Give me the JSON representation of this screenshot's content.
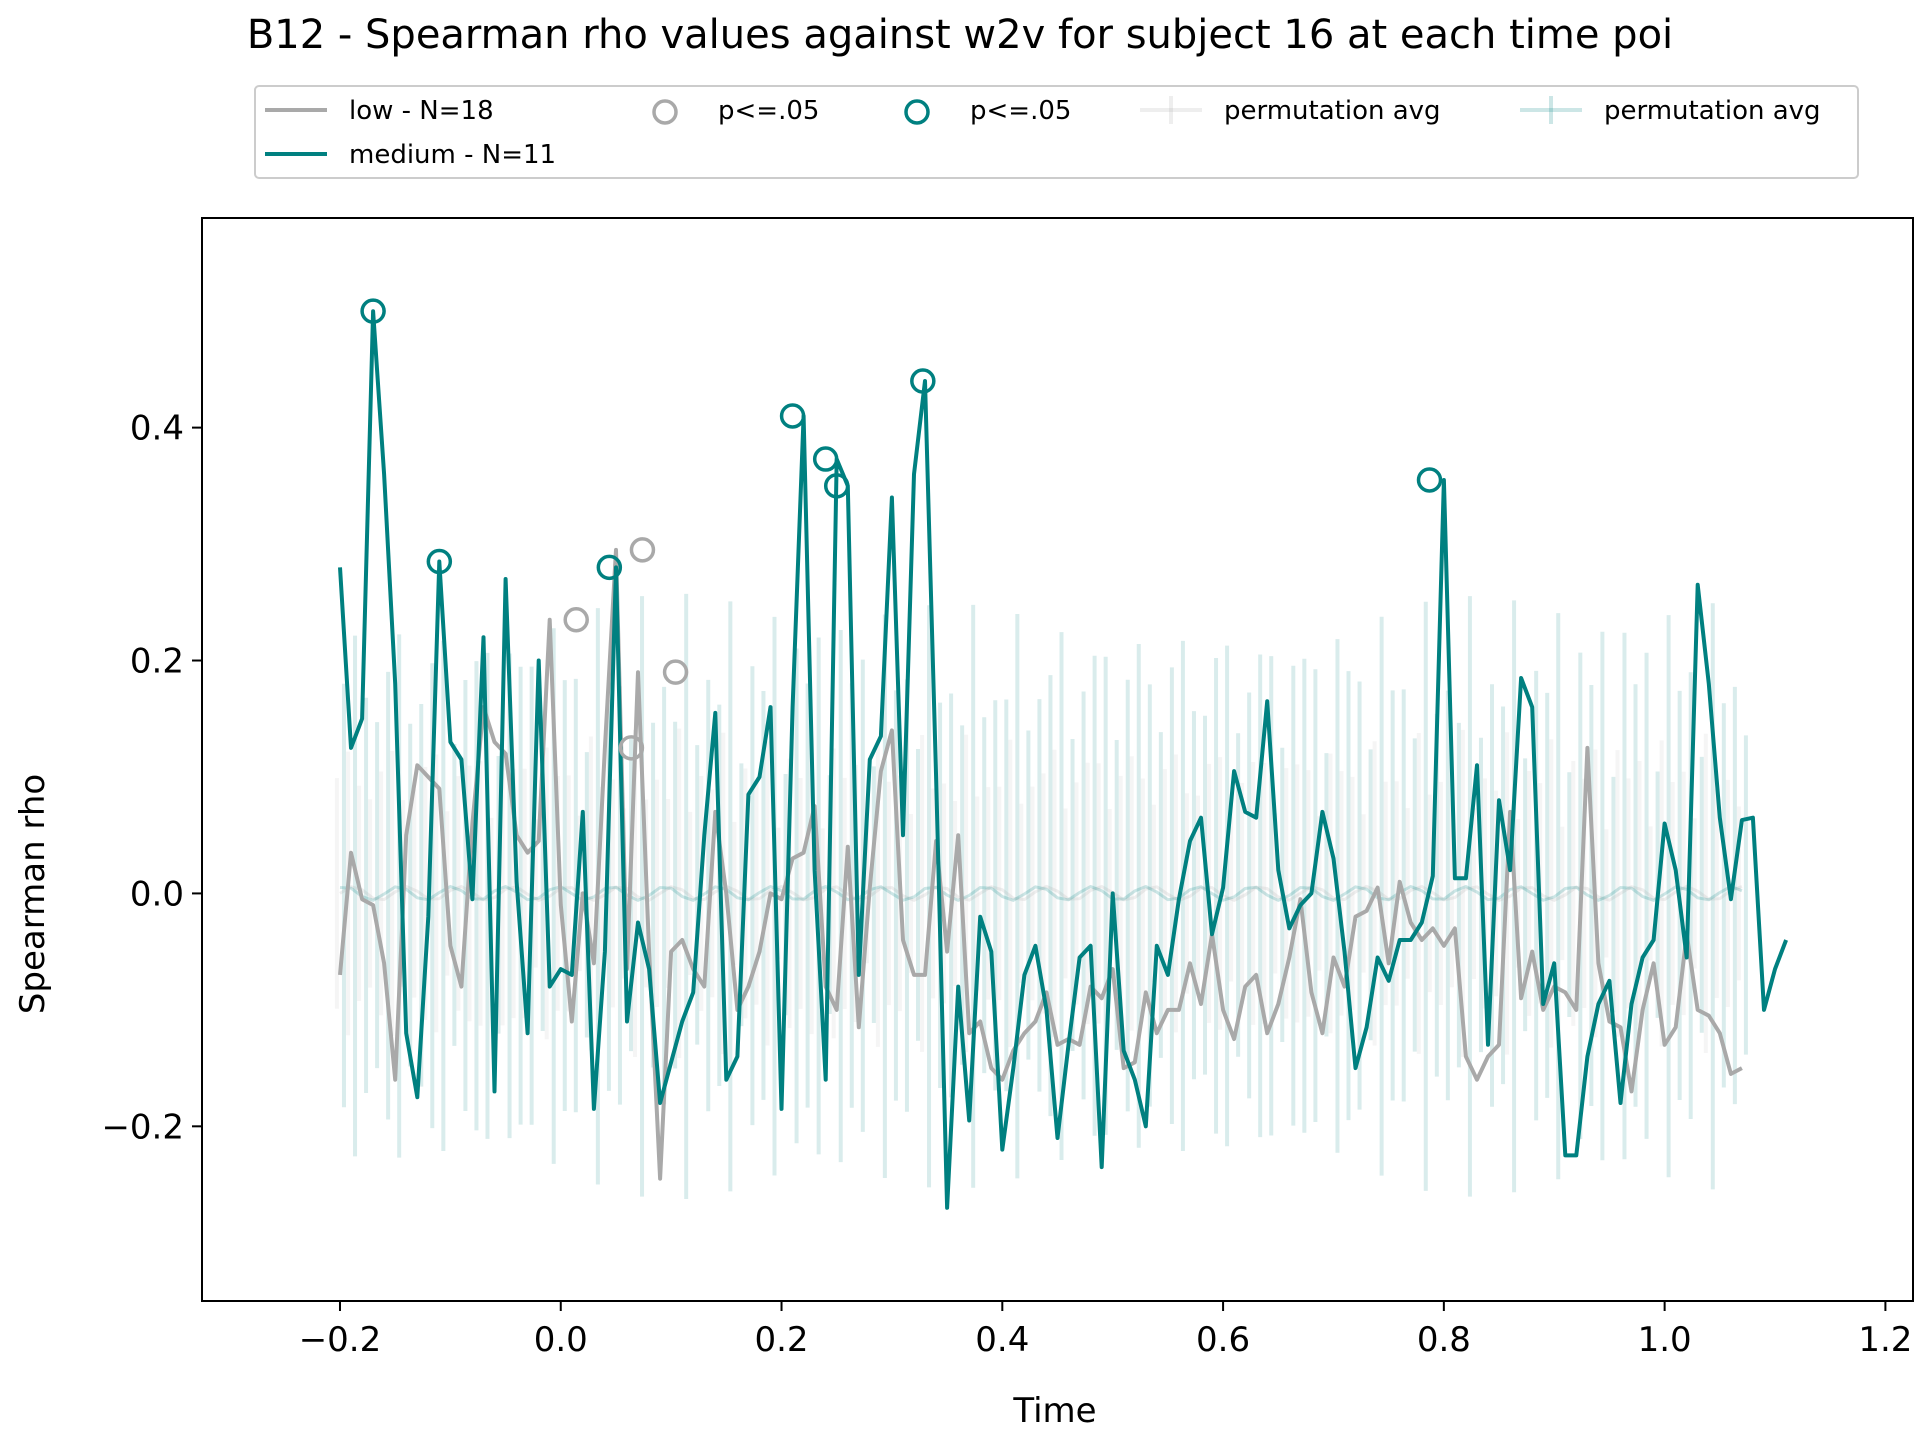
{
  "chart_data": {
    "type": "line",
    "title": "B12 - Spearman rho values against w2v for subject 16 at each time poi",
    "xlabel": "Time",
    "ylabel": "Spearman rho",
    "xlim": [
      -0.325,
      1.225
    ],
    "ylim": [
      -0.35,
      0.58
    ],
    "xticks": [
      -0.2,
      0.0,
      0.2,
      0.4,
      0.6,
      0.8,
      1.0,
      1.2
    ],
    "xtick_labels": [
      "−0.2",
      "0.0",
      "0.2",
      "0.4",
      "0.6",
      "0.8",
      "1.0",
      "1.2"
    ],
    "yticks": [
      -0.2,
      0.0,
      0.2,
      0.4
    ],
    "ytick_labels": [
      "−0.2",
      "0.0",
      "0.2",
      "0.4"
    ],
    "grid": false,
    "legend_placement": "top-center, above plot",
    "legend": [
      {
        "label": "low - N=18",
        "kind": "line",
        "color": "#a9a9a9"
      },
      {
        "label": "medium - N=11",
        "kind": "line",
        "color": "#008080"
      },
      {
        "label": "p<=.05",
        "kind": "marker",
        "color": "#a9a9a9"
      },
      {
        "label": "p<=.05",
        "kind": "marker",
        "color": "#008080"
      },
      {
        "label": "permutation avg",
        "kind": "errorbar",
        "color": "#a9a9a9"
      },
      {
        "label": "permutation avg",
        "kind": "errorbar",
        "color": "#008080"
      }
    ],
    "x_start": -0.2,
    "x_step": 0.01,
    "series": [
      {
        "name": "low - N=18",
        "color": "#a9a9a9",
        "values": [
          -0.07,
          0.035,
          -0.005,
          -0.01,
          -0.06,
          -0.16,
          0.05,
          0.11,
          0.1,
          0.09,
          -0.045,
          -0.08,
          0.06,
          0.16,
          0.13,
          0.12,
          0.05,
          0.035,
          0.045,
          0.235,
          -0.01,
          -0.11,
          0.0,
          -0.06,
          0.125,
          0.295,
          -0.065,
          0.19,
          -0.05,
          -0.245,
          -0.05,
          -0.04,
          -0.065,
          -0.08,
          0.07,
          0.0,
          -0.1,
          -0.08,
          -0.05,
          0.0,
          -0.005,
          0.03,
          0.035,
          0.075,
          -0.08,
          -0.1,
          0.04,
          -0.115,
          0.005,
          0.105,
          0.14,
          -0.04,
          -0.07,
          -0.07,
          0.045,
          -0.05,
          0.05,
          -0.12,
          -0.11,
          -0.15,
          -0.16,
          -0.135,
          -0.12,
          -0.11,
          -0.085,
          -0.13,
          -0.125,
          -0.13,
          -0.08,
          -0.09,
          -0.065,
          -0.15,
          -0.145,
          -0.085,
          -0.12,
          -0.1,
          -0.1,
          -0.06,
          -0.095,
          -0.035,
          -0.1,
          -0.125,
          -0.08,
          -0.07,
          -0.12,
          -0.095,
          -0.055,
          -0.005,
          -0.085,
          -0.12,
          -0.055,
          -0.08,
          -0.02,
          -0.015,
          0.005,
          -0.06,
          0.01,
          -0.025,
          -0.04,
          -0.03,
          -0.045,
          -0.03,
          -0.14,
          -0.16,
          -0.14,
          -0.13,
          0.07,
          -0.09,
          -0.05,
          -0.1,
          -0.08,
          -0.085,
          -0.1,
          0.125,
          -0.06,
          -0.11,
          -0.115,
          -0.17,
          -0.1,
          -0.06,
          -0.13,
          -0.115,
          -0.035,
          -0.1,
          -0.105,
          -0.12,
          -0.155,
          -0.15
        ]
      },
      {
        "name": "medium - N=11",
        "color": "#008080",
        "values": [
          0.28,
          0.125,
          0.15,
          0.5,
          0.36,
          0.18,
          -0.12,
          -0.175,
          -0.02,
          0.285,
          0.13,
          0.115,
          -0.005,
          0.22,
          -0.17,
          0.27,
          0.01,
          -0.12,
          0.2,
          -0.08,
          -0.065,
          -0.07,
          0.07,
          -0.185,
          -0.05,
          0.28,
          -0.11,
          -0.025,
          -0.065,
          -0.18,
          -0.145,
          -0.11,
          -0.085,
          0.05,
          0.155,
          -0.16,
          -0.14,
          0.085,
          0.1,
          0.16,
          -0.185,
          0.16,
          0.41,
          0.02,
          -0.16,
          0.373,
          0.35,
          -0.07,
          0.115,
          0.135,
          0.34,
          0.05,
          0.36,
          0.44,
          0.1,
          -0.27,
          -0.08,
          -0.195,
          -0.02,
          -0.05,
          -0.22,
          -0.15,
          -0.07,
          -0.045,
          -0.1,
          -0.21,
          -0.13,
          -0.055,
          -0.045,
          -0.235,
          0.0,
          -0.135,
          -0.16,
          -0.2,
          -0.045,
          -0.07,
          -0.005,
          0.045,
          0.065,
          -0.035,
          0.005,
          0.105,
          0.07,
          0.065,
          0.165,
          0.02,
          -0.03,
          -0.01,
          0.0,
          0.07,
          0.03,
          -0.05,
          -0.15,
          -0.115,
          -0.055,
          -0.075,
          -0.04,
          -0.04,
          -0.025,
          0.015,
          0.355,
          0.013,
          0.013,
          0.11,
          -0.13,
          0.08,
          0.02,
          0.185,
          0.16,
          -0.095,
          -0.06,
          -0.225,
          -0.225,
          -0.14,
          -0.095,
          -0.075,
          -0.18,
          -0.095,
          -0.055,
          -0.04,
          0.06,
          0.02,
          -0.055,
          0.265,
          0.18,
          0.065,
          -0.005,
          0.063,
          0.065,
          -0.1,
          -0.065,
          -0.04
        ]
      }
    ],
    "significant_points": [
      {
        "series": "low - N=18",
        "x": [
          0.014,
          0.064,
          0.074,
          0.104
        ],
        "y": [
          0.235,
          0.125,
          0.295,
          0.19
        ]
      },
      {
        "series": "medium - N=11",
        "x": [
          -0.17,
          -0.11,
          0.044,
          0.21,
          0.24,
          0.25,
          0.328,
          0.787
        ],
        "y": [
          0.5,
          0.285,
          0.28,
          0.41,
          0.373,
          0.35,
          0.44,
          0.355
        ]
      }
    ],
    "permutation_band": {
      "name": "permutation avg",
      "center": 0.0,
      "approx_halfwidth_range": [
        0.1,
        0.26
      ]
    }
  }
}
